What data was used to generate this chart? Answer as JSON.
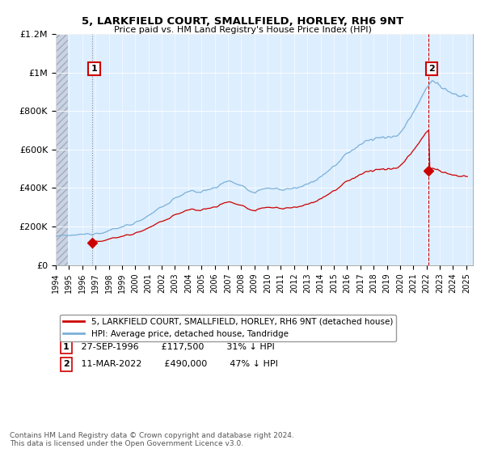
{
  "title": "5, LARKFIELD COURT, SMALLFIELD, HORLEY, RH6 9NT",
  "subtitle": "Price paid vs. HM Land Registry's House Price Index (HPI)",
  "legend_line1": "5, LARKFIELD COURT, SMALLFIELD, HORLEY, RH6 9NT (detached house)",
  "legend_line2": "HPI: Average price, detached house, Tandridge",
  "sale1_date": "27-SEP-1996",
  "sale1_price": "£117,500",
  "sale1_hpi": "31% ↓ HPI",
  "sale2_date": "11-MAR-2022",
  "sale2_price": "£490,000",
  "sale2_hpi": "47% ↓ HPI",
  "footnote": "Contains HM Land Registry data © Crown copyright and database right 2024.\nThis data is licensed under the Open Government Licence v3.0.",
  "line_color_red": "#cc0000",
  "line_color_blue": "#7ab0d8",
  "plot_bg_color": "#ddeeff",
  "hatch_color": "#c0c8d8",
  "ylim_max": 1200000,
  "xlim_min": 1994.0,
  "xlim_max": 2025.5,
  "sale1_year": 1996.75,
  "sale1_value": 117500,
  "sale2_year": 2022.17,
  "sale2_value": 490000,
  "hpi_anchors_years": [
    1994.0,
    1995.0,
    1996.0,
    1997.0,
    1998.0,
    1999.0,
    2000.0,
    2001.0,
    2002.0,
    2003.0,
    2004.0,
    2005.0,
    2006.0,
    2007.0,
    2008.0,
    2009.0,
    2010.0,
    2011.0,
    2012.0,
    2013.0,
    2014.0,
    2015.0,
    2016.0,
    2017.0,
    2018.0,
    2019.0,
    2020.0,
    2021.0,
    2022.0,
    2022.5,
    2023.0,
    2023.5,
    2024.0,
    2024.5,
    2025.0
  ],
  "hpi_anchors_vals": [
    150000,
    152000,
    158000,
    165000,
    178000,
    198000,
    220000,
    255000,
    300000,
    345000,
    385000,
    380000,
    400000,
    440000,
    410000,
    375000,
    400000,
    395000,
    395000,
    420000,
    460000,
    510000,
    580000,
    630000,
    660000,
    660000,
    680000,
    790000,
    920000,
    960000,
    930000,
    905000,
    890000,
    880000,
    880000
  ]
}
